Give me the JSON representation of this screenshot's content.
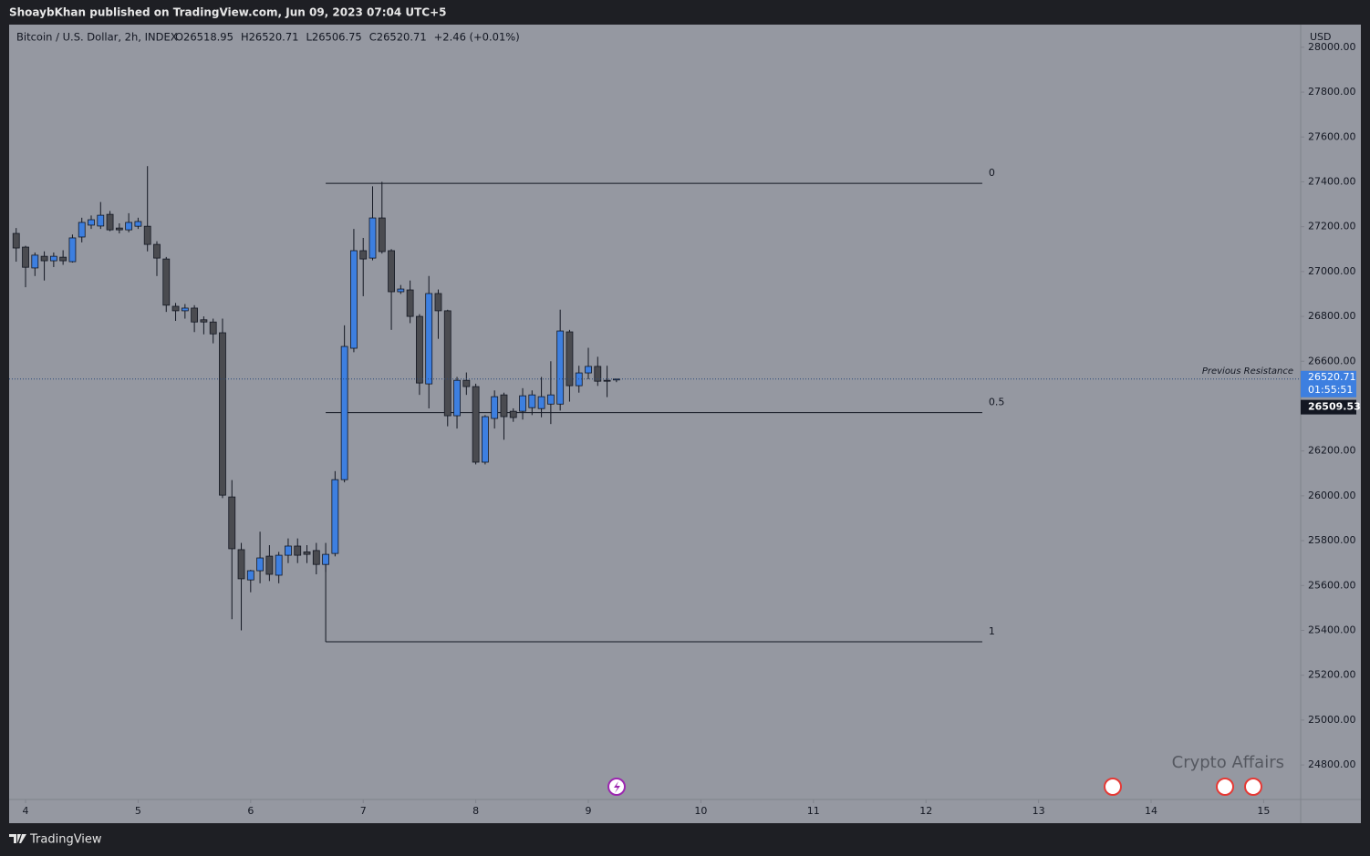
{
  "header": {
    "published": "ShoaybKhan published on TradingView.com, Jun 09, 2023 07:04 UTC+5"
  },
  "footer": {
    "brand": "TradingView"
  },
  "chart_data": {
    "type": "candlestick",
    "title": "Bitcoin / U.S. Dollar, 2h, INDEX",
    "ohlc_legend": [
      "O26518.95",
      "H26520.71",
      "L26506.75",
      "C26520.71",
      "+2.46 (+0.01%)"
    ],
    "currency": "USD",
    "up_color": "#3d7fe0",
    "down_color": "#4a4b50",
    "x": [
      3.9167,
      4,
      4.0833,
      4.1667,
      4.25,
      4.3333,
      4.4167,
      4.5,
      4.5833,
      4.6667,
      4.75,
      4.8333,
      4.9167,
      5,
      5.0833,
      5.1667,
      5.25,
      5.3333,
      5.4167,
      5.5,
      5.5833,
      5.6667,
      5.75,
      5.8333,
      5.9167,
      6,
      6.0833,
      6.1667,
      6.25,
      6.3333,
      6.4167,
      6.5,
      6.5833,
      6.6667,
      6.75,
      6.8333,
      6.9167,
      7,
      7.0833,
      7.1667,
      7.25,
      7.3333,
      7.4167,
      7.5,
      7.5833,
      7.6667,
      7.75,
      7.8333,
      7.9167,
      8,
      8.0833,
      8.1667,
      8.25,
      8.3333,
      8.4167,
      8.5,
      8.5833,
      8.6667,
      8.75,
      8.8333,
      8.9167,
      9,
      9.0833,
      9.1667,
      9.25
    ],
    "open": [
      27170,
      27109,
      27016,
      27068,
      27048,
      27064,
      27044,
      27154,
      27207,
      27203,
      27255,
      27194,
      27186,
      27202,
      27202,
      27121,
      27056,
      26845,
      26825,
      26837,
      26785,
      26775,
      26727,
      25995,
      25760,
      25625,
      25666,
      25731,
      25646,
      25735,
      25776,
      25750,
      25756,
      25694,
      25743,
      26072,
      26658,
      27093,
      27060,
      27239,
      27093,
      26910,
      26918,
      26800,
      26499,
      26902,
      26825,
      26357,
      26515,
      26487,
      26150,
      26345,
      26450,
      26377,
      26377,
      26393,
      26389,
      26409,
      26409,
      26731,
      26491,
      26548,
      26577,
      26515,
      26518.95
    ],
    "high": [
      27194,
      27115,
      27085,
      27090,
      27085,
      27095,
      27165,
      27240,
      27250,
      27310,
      27270,
      27215,
      27260,
      27240,
      27470,
      27135,
      27065,
      26860,
      26855,
      26850,
      26800,
      26790,
      26790,
      26070,
      25790,
      25670,
      25840,
      25780,
      25750,
      25810,
      25810,
      25780,
      25790,
      25790,
      26110,
      26760,
      27190,
      27150,
      27380,
      27400,
      27100,
      26940,
      26960,
      26810,
      26980,
      26920,
      26830,
      26530,
      26550,
      26500,
      26360,
      26470,
      26460,
      26390,
      26480,
      26470,
      26530,
      26600,
      26830,
      26740,
      26580,
      26660,
      26620,
      26580,
      26520.71
    ],
    "low": [
      27044,
      26930,
      26980,
      26960,
      27020,
      27030,
      27040,
      27130,
      27190,
      27190,
      27180,
      27170,
      27175,
      27190,
      27090,
      26980,
      26820,
      26780,
      26790,
      26730,
      26720,
      26680,
      25990,
      25450,
      25400,
      25570,
      25610,
      25620,
      25610,
      25700,
      25700,
      25700,
      25650,
      25660,
      25730,
      26060,
      26640,
      26890,
      27050,
      27080,
      26740,
      26900,
      26770,
      26450,
      26390,
      26700,
      26310,
      26300,
      26450,
      26140,
      26140,
      26300,
      26250,
      26330,
      26340,
      26360,
      26350,
      26320,
      26380,
      26420,
      26460,
      26520,
      26490,
      26440,
      26506.75
    ],
    "close": [
      27105,
      27019,
      27073,
      27048,
      27068,
      27048,
      27150,
      27219,
      27231,
      27251,
      27186,
      27186,
      27219,
      27223,
      27121,
      27060,
      26850,
      26825,
      26837,
      26775,
      26775,
      26722,
      26003,
      25764,
      25630,
      25666,
      25723,
      25650,
      25735,
      25776,
      25735,
      25739,
      25694,
      25739,
      26072,
      26666,
      27093,
      27056,
      27239,
      27089,
      26910,
      26922,
      26800,
      26503,
      26902,
      26825,
      26357,
      26515,
      26487,
      26150,
      26353,
      26442,
      26353,
      26349,
      26446,
      26450,
      26442,
      26450,
      26735,
      26491,
      26548,
      26577,
      26511,
      26511,
      26520.71
    ],
    "xlim": [
      3.854,
      15.329
    ],
    "xticks": [
      4,
      5,
      6,
      7,
      8,
      9,
      10,
      11,
      12,
      13,
      14,
      15
    ],
    "ylim": [
      24646,
      28101
    ],
    "yticks": [
      {
        "value": 24800,
        "label": "24800.00"
      },
      {
        "value": 25000,
        "label": "25000.00"
      },
      {
        "value": 25200,
        "label": "25200.00"
      },
      {
        "value": 25400,
        "label": "25400.00"
      },
      {
        "value": 25600,
        "label": "25600.00"
      },
      {
        "value": 25800,
        "label": "25800.00"
      },
      {
        "value": 26000,
        "label": "26000.00"
      },
      {
        "value": 26200,
        "label": "26200.00"
      },
      {
        "value": 26600,
        "label": "26600.00"
      },
      {
        "value": 26800,
        "label": "26800.00"
      },
      {
        "value": 27000,
        "label": "27000.00"
      },
      {
        "value": 27200,
        "label": "27200.00"
      },
      {
        "value": 27400,
        "label": "27400.00"
      },
      {
        "value": 27600,
        "label": "27600.00"
      },
      {
        "value": 27800,
        "label": "27800.00"
      },
      {
        "value": 28000,
        "label": "28000.00"
      }
    ],
    "last_price": 26520.71,
    "countdown": "01:55:51",
    "fib": {
      "start": 6.6667,
      "end": 12.5,
      "high": 27393,
      "low": 25349,
      "levels": [
        0,
        0.5,
        1
      ],
      "price_label": "26509.53"
    },
    "annotation": "Previous Resistance",
    "watermark": "Crypto Affairs"
  }
}
